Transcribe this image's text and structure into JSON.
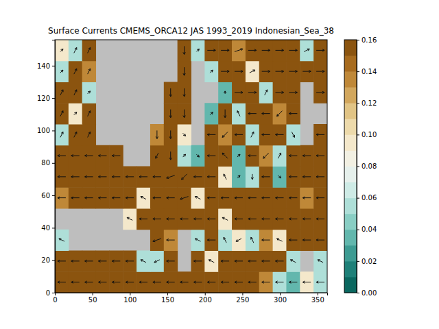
{
  "chart_data": {
    "type": "heatmap",
    "title": "Surface Currents CMEMS_ORCA12 JAS 1993_2019 Indonesian_Sea_38",
    "xlim": [
      0,
      363
    ],
    "ylim": [
      0,
      156
    ],
    "xticks": [
      0,
      50,
      100,
      150,
      200,
      250,
      300,
      350
    ],
    "yticks": [
      0,
      20,
      40,
      60,
      80,
      100,
      120,
      140
    ],
    "x_edges": [
      0,
      18.15,
      36.3,
      54.45,
      72.6,
      90.75,
      108.9,
      127.05,
      145.2,
      163.35,
      181.5,
      199.65,
      217.8,
      235.95,
      254.1,
      272.25,
      290.4,
      308.55,
      326.7,
      344.85,
      363
    ],
    "y_edges": [
      0,
      13,
      26,
      39,
      52,
      65,
      78,
      91,
      104,
      117,
      130,
      143,
      156
    ],
    "cells": [
      [
        0.16,
        0.16,
        0.16,
        0.16,
        0.16,
        0.16,
        0.16,
        0.16,
        0.16,
        0.16,
        0.16,
        0.16,
        0.16,
        0.16,
        0.16,
        0.13,
        0.05,
        0.03,
        0.09,
        0.05
      ],
      [
        0.16,
        0.16,
        0.16,
        0.16,
        0.16,
        0.16,
        0.05,
        0.05,
        0.16,
        null,
        0.16,
        0.09,
        0.16,
        0.16,
        0.16,
        0.16,
        0.16,
        0.05,
        null,
        0.05
      ],
      [
        0.05,
        null,
        null,
        null,
        null,
        null,
        null,
        0.16,
        0.13,
        null,
        0.05,
        0.16,
        0.05,
        0.09,
        0.05,
        0.13,
        0.09,
        0.16,
        0.16,
        0.16
      ],
      [
        null,
        null,
        null,
        null,
        null,
        0.09,
        0.16,
        0.16,
        0.16,
        0.16,
        0.16,
        0.16,
        0.09,
        0.16,
        0.16,
        0.16,
        0.16,
        0.16,
        0.16,
        0.16
      ],
      [
        0.13,
        0.16,
        0.16,
        0.16,
        0.16,
        0.16,
        0.09,
        0.16,
        0.16,
        0.16,
        0.09,
        0.16,
        0.16,
        0.16,
        0.16,
        0.16,
        0.16,
        0.16,
        0.13,
        0.16
      ],
      [
        0.16,
        0.16,
        0.16,
        0.16,
        0.16,
        0.16,
        0.16,
        0.16,
        0.16,
        0.16,
        0.16,
        0.16,
        0.09,
        0.03,
        0.05,
        0.16,
        0.03,
        0.16,
        0.16,
        0.16
      ],
      [
        0.16,
        0.16,
        0.16,
        0.16,
        0.16,
        null,
        null,
        0.16,
        0.16,
        0.05,
        0.03,
        0.16,
        0.16,
        0.03,
        0.16,
        0.13,
        0.05,
        0.16,
        0.16,
        0.16
      ],
      [
        0.05,
        0.16,
        0.16,
        null,
        null,
        null,
        null,
        0.13,
        0.16,
        0.09,
        null,
        0.16,
        0.13,
        0.16,
        0.05,
        0.16,
        0.16,
        0.05,
        null,
        0.16
      ],
      [
        0.16,
        0.09,
        0.16,
        null,
        null,
        null,
        null,
        null,
        0.16,
        0.16,
        null,
        0.03,
        0.16,
        0.05,
        0.16,
        0.16,
        0.13,
        0.16,
        null,
        null
      ],
      [
        0.16,
        0.16,
        0.05,
        null,
        null,
        null,
        null,
        null,
        0.16,
        0.16,
        null,
        null,
        0.03,
        0.16,
        0.16,
        0.05,
        0.16,
        0.16,
        null,
        0.16
      ],
      [
        0.05,
        0.16,
        0.13,
        null,
        null,
        null,
        null,
        null,
        null,
        0.16,
        null,
        0.05,
        0.16,
        0.16,
        0.09,
        0.16,
        0.16,
        0.16,
        0.16,
        0.16
      ],
      [
        0.09,
        0.05,
        0.16,
        null,
        null,
        null,
        null,
        null,
        null,
        0.16,
        0.05,
        0.16,
        0.16,
        0.13,
        0.16,
        0.16,
        0.16,
        0.16,
        0.05,
        0.16
      ]
    ],
    "u": [
      [
        -0.3,
        -0.3,
        -0.3,
        -0.3,
        -0.3,
        -0.3,
        -0.3,
        -0.3,
        -0.3,
        -0.3,
        -0.3,
        -0.3,
        -0.3,
        -0.3,
        -0.3,
        -0.3,
        -0.3,
        -0.3,
        -0.3,
        -0.3
      ],
      [
        -0.3,
        -0.3,
        -0.3,
        -0.3,
        -0.3,
        -0.3,
        -0.2,
        -0.2,
        -0.3,
        null,
        -0.3,
        -0.2,
        -0.3,
        -0.3,
        -0.3,
        -0.3,
        -0.3,
        -0.2,
        null,
        -0.2
      ],
      [
        -0.2,
        null,
        null,
        null,
        null,
        null,
        null,
        -0.3,
        -0.3,
        null,
        -0.2,
        -0.3,
        -0.1,
        -0.2,
        -0.1,
        -0.3,
        -0.2,
        -0.3,
        -0.3,
        -0.3
      ],
      [
        null,
        null,
        null,
        null,
        null,
        -0.2,
        -0.3,
        -0.3,
        -0.3,
        -0.3,
        -0.3,
        -0.3,
        -0.2,
        -0.3,
        -0.3,
        -0.3,
        -0.3,
        -0.3,
        -0.3,
        -0.3
      ],
      [
        -0.3,
        -0.3,
        -0.3,
        -0.3,
        -0.3,
        -0.3,
        -0.2,
        -0.3,
        -0.3,
        -0.3,
        -0.2,
        -0.3,
        -0.3,
        -0.3,
        -0.3,
        -0.3,
        -0.3,
        -0.3,
        -0.3,
        -0.3
      ],
      [
        -0.3,
        -0.3,
        -0.3,
        -0.3,
        -0.3,
        -0.3,
        -0.3,
        -0.3,
        -0.3,
        -0.2,
        -0.3,
        -0.3,
        -0.1,
        0.1,
        0,
        -0.3,
        0.1,
        -0.3,
        -0.3,
        -0.3
      ],
      [
        -0.3,
        -0.3,
        -0.3,
        -0.3,
        -0.3,
        null,
        null,
        -0.1,
        0,
        0.1,
        0.1,
        -0.3,
        -0.2,
        0.1,
        -0.3,
        -0.2,
        0.1,
        -0.3,
        -0.3,
        -0.3
      ],
      [
        0.1,
        0.1,
        0.1,
        null,
        null,
        null,
        null,
        0,
        0,
        0.1,
        null,
        -0.3,
        -0.2,
        -0.3,
        0.1,
        -0.3,
        -0.3,
        0.1,
        null,
        -0.3
      ],
      [
        0.1,
        0.1,
        0.1,
        null,
        null,
        null,
        null,
        null,
        0,
        0,
        null,
        0.1,
        0,
        -0.1,
        -0.3,
        -0.3,
        -0.2,
        -0.3,
        null,
        null
      ],
      [
        0.1,
        0.1,
        0.1,
        null,
        null,
        null,
        null,
        null,
        0,
        0,
        null,
        null,
        0,
        0.3,
        0.3,
        0.1,
        0.3,
        0.3,
        null,
        0.3
      ],
      [
        0.1,
        0.1,
        0.1,
        null,
        null,
        null,
        null,
        null,
        null,
        0,
        null,
        0.1,
        0.3,
        0.3,
        0.2,
        0.3,
        0.3,
        0.3,
        0.3,
        0.3
      ],
      [
        0.1,
        0.1,
        0.1,
        null,
        null,
        null,
        null,
        null,
        null,
        0,
        0.1,
        0.3,
        0.3,
        0.3,
        0.3,
        0.3,
        0.3,
        0.3,
        0.2,
        0.3
      ]
    ],
    "v": [
      [
        0,
        0,
        0,
        0,
        0,
        0,
        0,
        0,
        0,
        0,
        0,
        0,
        0,
        0,
        0,
        0,
        0,
        0,
        0,
        0
      ],
      [
        0,
        0,
        0,
        0,
        0,
        0,
        0.1,
        -0.1,
        0,
        null,
        0,
        0.1,
        0,
        0,
        0,
        0,
        0,
        0.1,
        null,
        0.1
      ],
      [
        0.1,
        null,
        null,
        null,
        null,
        null,
        null,
        -0.1,
        0,
        null,
        0.1,
        0,
        0.2,
        -0.1,
        0.2,
        0,
        0.1,
        0,
        0,
        0
      ],
      [
        null,
        null,
        null,
        null,
        null,
        0.1,
        0,
        0,
        0,
        0,
        0,
        0,
        0.1,
        0,
        0,
        0,
        0,
        0,
        0,
        0
      ],
      [
        0,
        0,
        0,
        0,
        0,
        0,
        0.1,
        0,
        0,
        -0.1,
        0.1,
        0,
        0,
        0,
        0,
        0,
        0,
        0,
        0,
        0
      ],
      [
        0,
        0,
        0,
        0,
        0,
        0,
        0,
        0,
        -0.1,
        -0.2,
        0,
        0,
        0.2,
        0.1,
        -0.2,
        0,
        -0.1,
        0,
        0,
        0
      ],
      [
        0,
        0,
        0,
        0,
        0,
        null,
        null,
        -0.2,
        -0.3,
        0.1,
        -0.1,
        0,
        0.2,
        0.1,
        0,
        -0.2,
        0.2,
        0,
        0,
        0
      ],
      [
        0.2,
        0.2,
        0.2,
        null,
        null,
        null,
        null,
        -0.3,
        -0.3,
        -0.1,
        null,
        0,
        -0.2,
        0,
        0.2,
        0,
        0,
        -0.2,
        null,
        0
      ],
      [
        0.2,
        0.1,
        0.2,
        null,
        null,
        null,
        null,
        null,
        -0.3,
        -0.3,
        null,
        0.1,
        -0.3,
        0.2,
        0,
        0,
        -0.2,
        0,
        null,
        null
      ],
      [
        0.2,
        0.2,
        0.1,
        null,
        null,
        null,
        null,
        null,
        -0.3,
        -0.3,
        null,
        null,
        0.1,
        0,
        0,
        0.2,
        0,
        0,
        null,
        0
      ],
      [
        0.1,
        0.2,
        0.2,
        null,
        null,
        null,
        null,
        null,
        null,
        -0.3,
        null,
        0.1,
        0,
        0,
        0.1,
        0,
        0,
        0,
        0,
        0
      ],
      [
        0.1,
        0.2,
        0.2,
        null,
        null,
        null,
        null,
        null,
        null,
        -0.3,
        0.1,
        0,
        0,
        0.1,
        0,
        0,
        0,
        0,
        0.1,
        0
      ]
    ],
    "colorbar": {
      "lim": [
        0,
        0.16
      ],
      "ticks": [
        {
          "value": 0,
          "label": "0.00"
        },
        0.02,
        0.04,
        0.06,
        0.08,
        {
          "value": 0.1,
          "label": "0.10"
        },
        0.12,
        0.14,
        0.16
      ]
    }
  }
}
